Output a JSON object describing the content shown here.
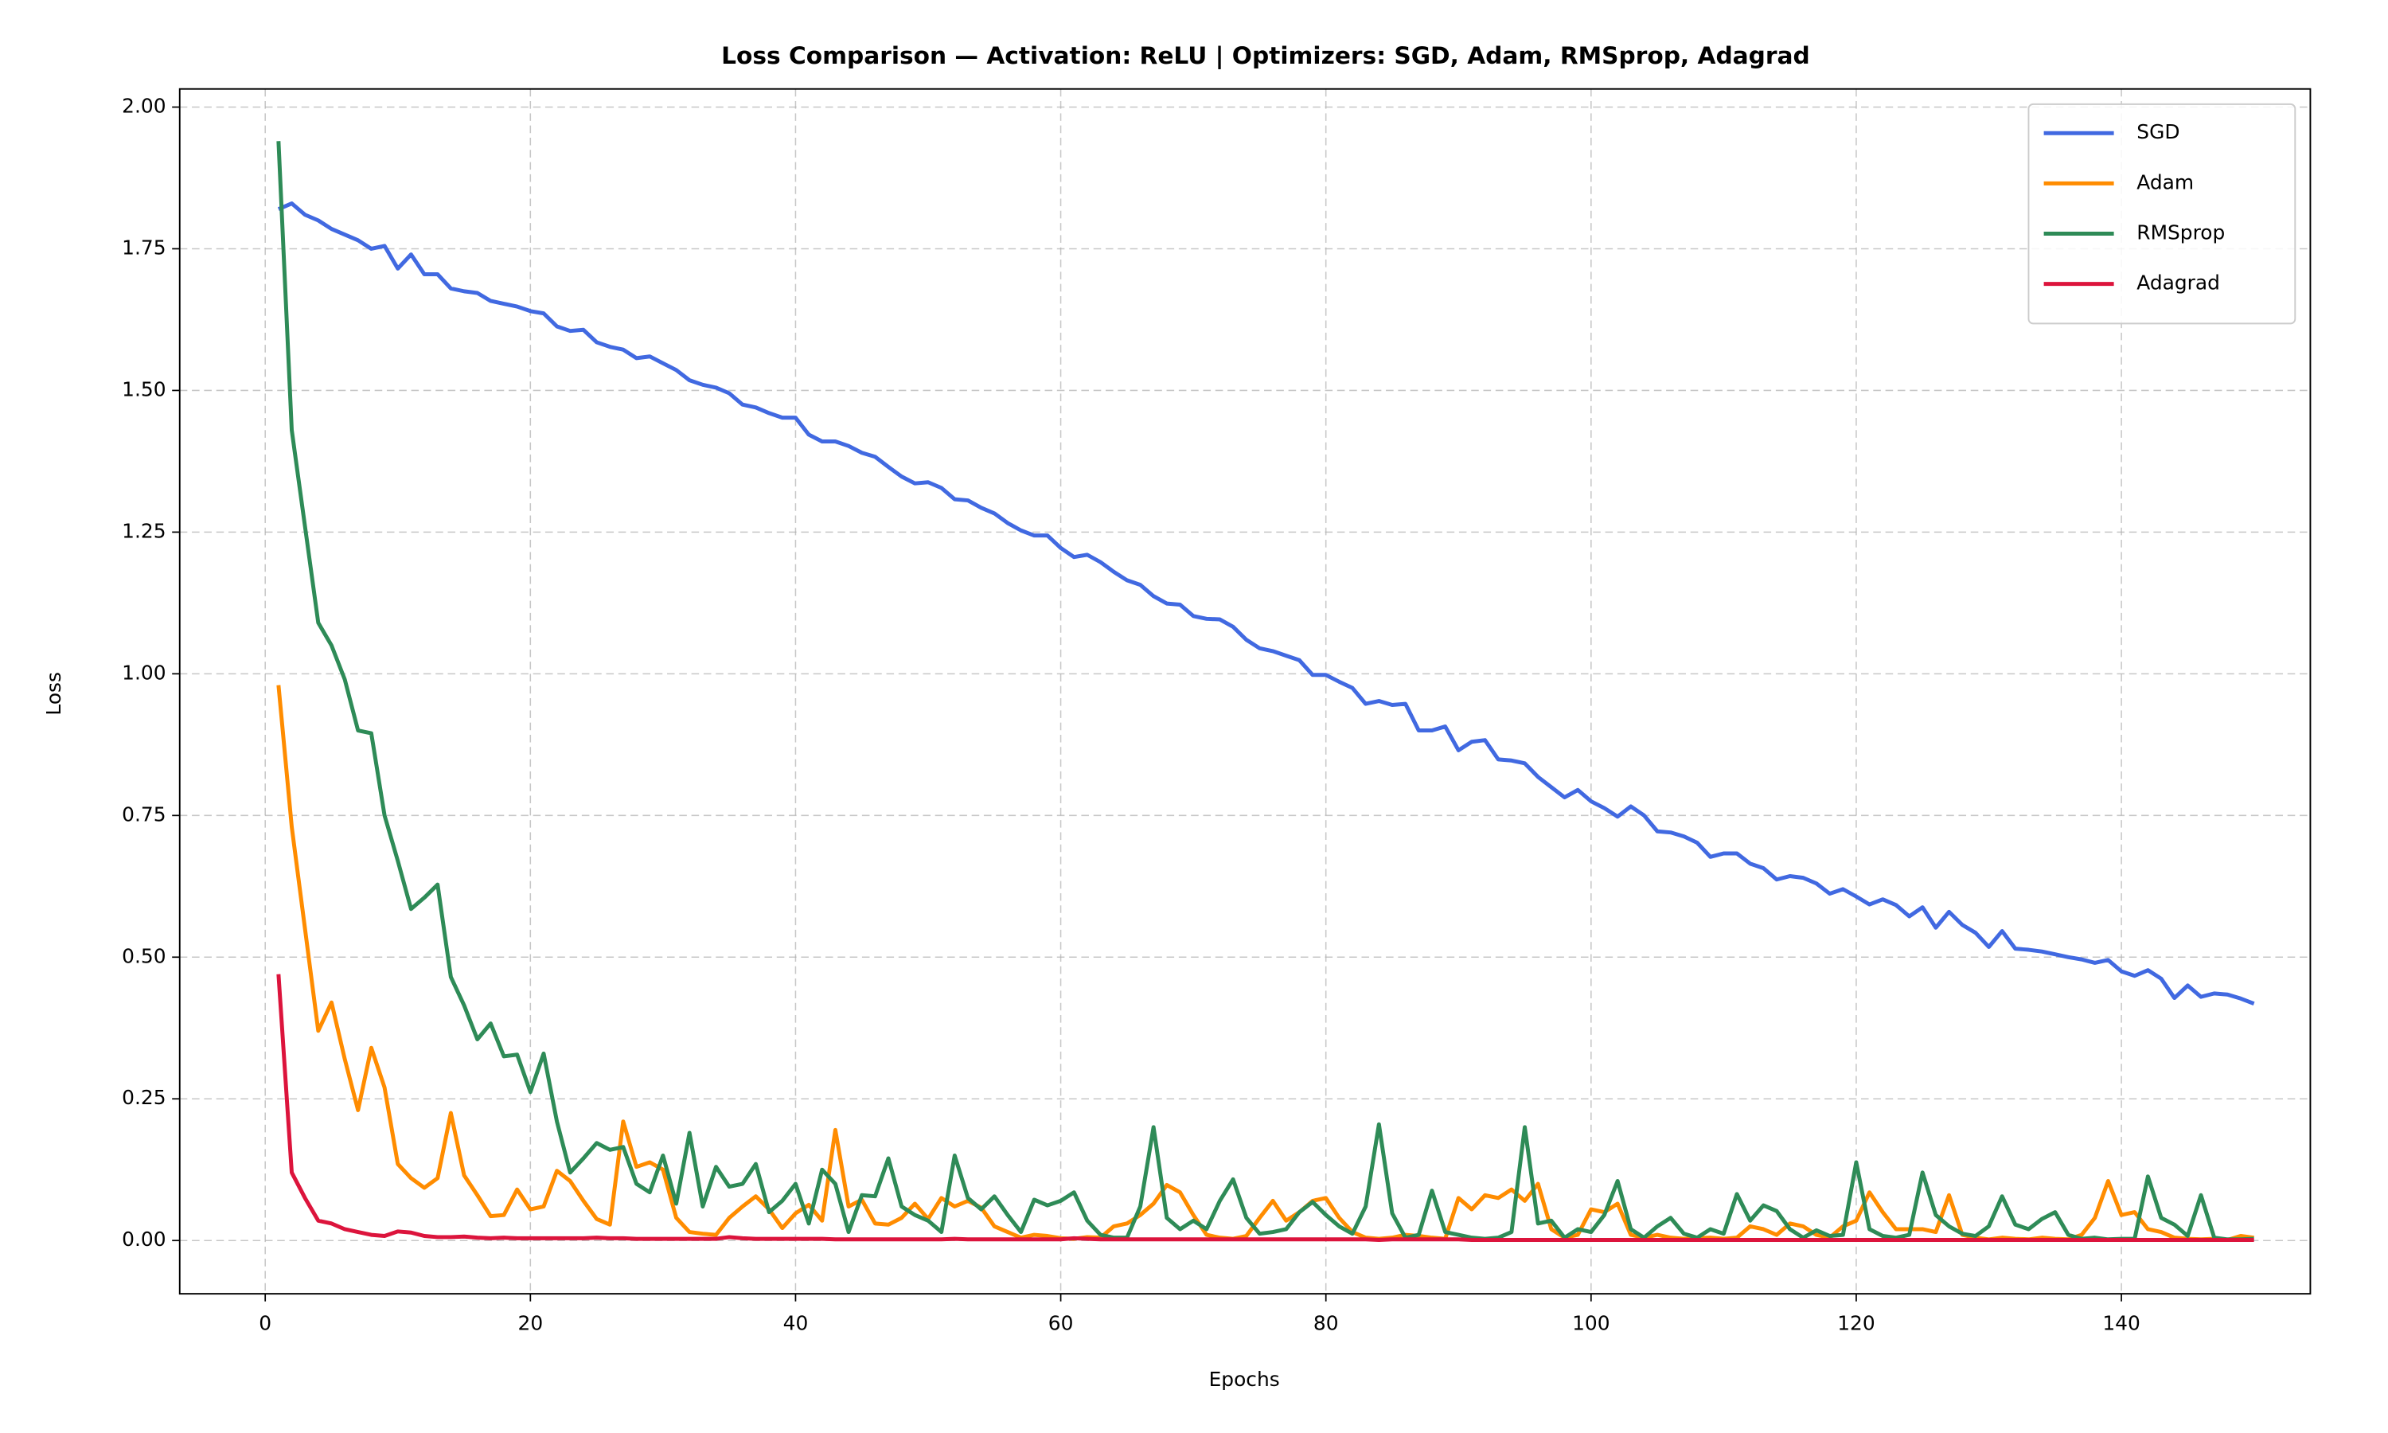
{
  "chart_data": {
    "type": "line",
    "title": "Loss Comparison — Activation: ReLU | Optimizers: SGD, Adam, RMSprop, Adagrad",
    "x_label": "Epochs",
    "y_label": "Loss",
    "xlim": [
      -6.45,
      154.25
    ],
    "ylim": [
      -0.094,
      2.032
    ],
    "xticks": [
      0,
      20,
      40,
      60,
      80,
      100,
      120,
      140
    ],
    "yticks": [
      {
        "value": 0,
        "label": "0.00"
      },
      {
        "value": 0.25,
        "label": "0.25"
      },
      {
        "value": 0.5,
        "label": "0.50"
      },
      {
        "value": 0.75,
        "label": "0.75"
      },
      {
        "value": 1,
        "label": "1.00"
      },
      {
        "value": 1.25,
        "label": "1.25"
      },
      {
        "value": 1.5,
        "label": "1.50"
      },
      {
        "value": 1.75,
        "label": "1.75"
      },
      {
        "value": 2,
        "label": "2.00"
      }
    ],
    "grid": true,
    "legend": "upper right",
    "x": [
      1,
      2,
      3,
      4,
      5,
      6,
      7,
      8,
      9,
      10,
      11,
      12,
      13,
      14,
      15,
      16,
      17,
      18,
      19,
      20,
      21,
      22,
      23,
      24,
      25,
      26,
      27,
      28,
      29,
      30,
      31,
      32,
      33,
      34,
      35,
      36,
      37,
      38,
      39,
      40,
      41,
      42,
      43,
      44,
      45,
      46,
      47,
      48,
      49,
      50,
      51,
      52,
      53,
      54,
      55,
      56,
      57,
      58,
      59,
      60,
      61,
      62,
      63,
      64,
      65,
      66,
      67,
      68,
      69,
      70,
      71,
      72,
      73,
      74,
      75,
      76,
      77,
      78,
      79,
      80,
      81,
      82,
      83,
      84,
      85,
      86,
      87,
      88,
      89,
      90,
      91,
      92,
      93,
      94,
      95,
      96,
      97,
      98,
      99,
      100,
      101,
      102,
      103,
      104,
      105,
      106,
      107,
      108,
      109,
      110,
      111,
      112,
      113,
      114,
      115,
      116,
      117,
      118,
      119,
      120,
      121,
      122,
      123,
      124,
      125,
      126,
      127,
      128,
      129,
      130,
      131,
      132,
      133,
      134,
      135,
      136,
      137,
      138,
      139,
      140,
      141,
      142,
      143,
      144,
      145,
      146,
      147,
      148,
      149,
      150
    ],
    "series": [
      {
        "name": "SGD",
        "color": "#4169e1",
        "values": [
          1.82,
          1.83,
          1.81,
          1.8,
          1.785,
          1.775,
          1.765,
          1.75,
          1.755,
          1.715,
          1.74,
          1.705,
          1.705,
          1.68,
          1.675,
          1.672,
          1.658,
          1.653,
          1.648,
          1.64,
          1.636,
          1.613,
          1.605,
          1.607,
          1.585,
          1.577,
          1.572,
          1.557,
          1.56,
          1.548,
          1.536,
          1.518,
          1.51,
          1.505,
          1.495,
          1.475,
          1.47,
          1.46,
          1.452,
          1.452,
          1.422,
          1.41,
          1.41,
          1.402,
          1.39,
          1.383,
          1.365,
          1.348,
          1.336,
          1.338,
          1.328,
          1.308,
          1.306,
          1.293,
          1.283,
          1.266,
          1.253,
          1.244,
          1.244,
          1.222,
          1.206,
          1.21,
          1.197,
          1.18,
          1.165,
          1.157,
          1.137,
          1.124,
          1.122,
          1.102,
          1.097,
          1.096,
          1.083,
          1.06,
          1.045,
          1.04,
          1.032,
          1.024,
          0.998,
          0.998,
          0.986,
          0.975,
          0.947,
          0.952,
          0.945,
          0.947,
          0.9,
          0.9,
          0.907,
          0.865,
          0.88,
          0.883,
          0.849,
          0.847,
          0.842,
          0.818,
          0.8,
          0.782,
          0.795,
          0.775,
          0.763,
          0.748,
          0.766,
          0.75,
          0.722,
          0.72,
          0.713,
          0.702,
          0.677,
          0.683,
          0.683,
          0.665,
          0.657,
          0.637,
          0.643,
          0.64,
          0.63,
          0.612,
          0.62,
          0.607,
          0.593,
          0.602,
          0.592,
          0.572,
          0.588,
          0.552,
          0.58,
          0.557,
          0.543,
          0.518,
          0.546,
          0.515,
          0.513,
          0.51,
          0.505,
          0.5,
          0.496,
          0.49,
          0.495,
          0.475,
          0.467,
          0.477,
          0.462,
          0.428,
          0.45,
          0.43,
          0.436,
          0.434,
          0.427,
          0.418
        ]
      },
      {
        "name": "Adam",
        "color": "#ff8c00",
        "values": [
          0.98,
          0.73,
          0.55,
          0.37,
          0.42,
          0.32,
          0.23,
          0.34,
          0.27,
          0.135,
          0.11,
          0.093,
          0.11,
          0.225,
          0.115,
          0.08,
          0.043,
          0.045,
          0.09,
          0.055,
          0.06,
          0.123,
          0.105,
          0.07,
          0.038,
          0.028,
          0.21,
          0.13,
          0.138,
          0.125,
          0.04,
          0.015,
          0.012,
          0.01,
          0.04,
          0.06,
          0.078,
          0.055,
          0.022,
          0.048,
          0.063,
          0.035,
          0.195,
          0.06,
          0.072,
          0.03,
          0.028,
          0.04,
          0.065,
          0.038,
          0.075,
          0.06,
          0.07,
          0.058,
          0.025,
          0.015,
          0.005,
          0.01,
          0.008,
          0.004,
          0.003,
          0.006,
          0.005,
          0.025,
          0.03,
          0.045,
          0.065,
          0.098,
          0.085,
          0.045,
          0.01,
          0.005,
          0.003,
          0.008,
          0.04,
          0.07,
          0.035,
          0.05,
          0.07,
          0.075,
          0.04,
          0.015,
          0.005,
          0.003,
          0.005,
          0.01,
          0.008,
          0.005,
          0.003,
          0.075,
          0.055,
          0.08,
          0.075,
          0.09,
          0.07,
          0.1,
          0.02,
          0.005,
          0.01,
          0.055,
          0.05,
          0.065,
          0.01,
          0.005,
          0.01,
          0.005,
          0.003,
          0.004,
          0.005,
          0.003,
          0.005,
          0.025,
          0.02,
          0.01,
          0.03,
          0.025,
          0.01,
          0.005,
          0.025,
          0.035,
          0.085,
          0.05,
          0.02,
          0.02,
          0.02,
          0.015,
          0.08,
          0.01,
          0.005,
          0.002,
          0.005,
          0.003,
          0.002,
          0.005,
          0.003,
          0.002,
          0.01,
          0.04,
          0.105,
          0.045,
          0.05,
          0.02,
          0.015,
          0.005,
          0.003,
          0.002,
          0.003,
          0.001,
          0.008,
          0.005
        ]
      },
      {
        "name": "RMSprop",
        "color": "#2e8b57",
        "values": [
          1.94,
          1.43,
          1.26,
          1.09,
          1.05,
          0.99,
          0.9,
          0.895,
          0.75,
          0.67,
          0.585,
          0.605,
          0.628,
          0.465,
          0.415,
          0.355,
          0.383,
          0.325,
          0.328,
          0.262,
          0.33,
          0.21,
          0.12,
          0.145,
          0.172,
          0.16,
          0.165,
          0.1,
          0.085,
          0.15,
          0.065,
          0.19,
          0.06,
          0.13,
          0.095,
          0.1,
          0.135,
          0.05,
          0.07,
          0.1,
          0.03,
          0.125,
          0.1,
          0.015,
          0.08,
          0.078,
          0.145,
          0.06,
          0.045,
          0.035,
          0.015,
          0.15,
          0.075,
          0.055,
          0.078,
          0.045,
          0.015,
          0.072,
          0.062,
          0.07,
          0.085,
          0.035,
          0.01,
          0.005,
          0.005,
          0.06,
          0.2,
          0.04,
          0.02,
          0.035,
          0.02,
          0.07,
          0.108,
          0.04,
          0.012,
          0.015,
          0.02,
          0.05,
          0.068,
          0.045,
          0.025,
          0.012,
          0.06,
          0.205,
          0.048,
          0.005,
          0.01,
          0.088,
          0.015,
          0.01,
          0.005,
          0.003,
          0.005,
          0.015,
          0.2,
          0.03,
          0.035,
          0.005,
          0.02,
          0.015,
          0.045,
          0.105,
          0.02,
          0.005,
          0.025,
          0.04,
          0.012,
          0.005,
          0.02,
          0.012,
          0.082,
          0.035,
          0.062,
          0.052,
          0.02,
          0.005,
          0.018,
          0.008,
          0.01,
          0.138,
          0.02,
          0.008,
          0.005,
          0.01,
          0.12,
          0.045,
          0.025,
          0.012,
          0.008,
          0.025,
          0.078,
          0.028,
          0.02,
          0.038,
          0.05,
          0.01,
          0.003,
          0.005,
          0.002,
          0.003,
          0.003,
          0.113,
          0.04,
          0.028,
          0.008,
          0.08,
          0.005,
          0.002,
          0.002,
          0.003
        ]
      },
      {
        "name": "Adagrad",
        "color": "#dc143c",
        "values": [
          0.47,
          0.12,
          0.075,
          0.035,
          0.03,
          0.02,
          0.015,
          0.01,
          0.008,
          0.016,
          0.014,
          0.008,
          0.006,
          0.006,
          0.007,
          0.005,
          0.004,
          0.005,
          0.004,
          0.004,
          0.004,
          0.004,
          0.004,
          0.004,
          0.005,
          0.004,
          0.004,
          0.003,
          0.003,
          0.003,
          0.003,
          0.003,
          0.003,
          0.003,
          0.006,
          0.004,
          0.003,
          0.003,
          0.003,
          0.003,
          0.003,
          0.003,
          0.002,
          0.002,
          0.002,
          0.002,
          0.002,
          0.002,
          0.002,
          0.002,
          0.002,
          0.003,
          0.002,
          0.002,
          0.002,
          0.002,
          0.002,
          0.002,
          0.002,
          0.002,
          0.004,
          0.003,
          0.002,
          0.002,
          0.002,
          0.002,
          0.002,
          0.002,
          0.002,
          0.002,
          0.002,
          0.002,
          0.002,
          0.002,
          0.002,
          0.002,
          0.002,
          0.002,
          0.002,
          0.002,
          0.002,
          0.002,
          0.002,
          0.001,
          0.002,
          0.002,
          0.002,
          0.002,
          0.002,
          0.002,
          0.001,
          0.001,
          0.001,
          0.001,
          0.001,
          0.001,
          0.001,
          0.001,
          0.001,
          0.001,
          0.001,
          0.001,
          0.001,
          0.001,
          0.001,
          0.001,
          0.001,
          0.001,
          0.001,
          0.001,
          0.001,
          0.001,
          0.001,
          0.001,
          0.001,
          0.001,
          0.001,
          0.001,
          0.001,
          0.001,
          0.001,
          0.001,
          0.001,
          0.001,
          0.001,
          0.001,
          0.001,
          0.001,
          0.001,
          0.001,
          0.001,
          0.001,
          0.001,
          0.001,
          0.001,
          0.001,
          0.001,
          0.001,
          0.001,
          0.001,
          0.001,
          0.001,
          0.001,
          0.001,
          0.001,
          0.001,
          0.001,
          0.001,
          0.001,
          0.001
        ]
      }
    ]
  }
}
